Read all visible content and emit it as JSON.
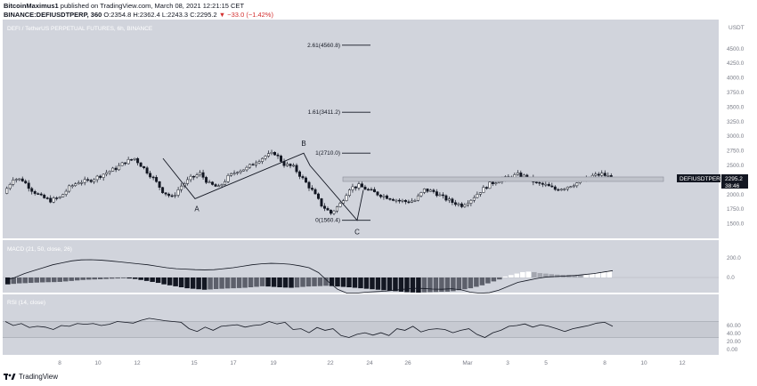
{
  "header": {
    "author": "BitcoinMaximus1",
    "published": "published on TradingView.com, March 08, 2021 12:21:15 CET",
    "symbol": "BINANCE:DEFIUSDTPERP, 360",
    "o": "O:2354.8",
    "h": "H:2362.4",
    "l": "L:2243.3",
    "c": "C:2295.2",
    "change": "▼ −33.0 (−1.42%)"
  },
  "panes": {
    "main_title": "DEFI / TetherUS PERPETUAL FUTURES, 6h, BINANCE",
    "currency": "USDT",
    "macd_title": "MACD (21, 50, close, 26)",
    "rsi_title": "RSI (14, close)"
  },
  "price_tag": {
    "symbol": "DEFIUSDTPERP",
    "price": "2295.2",
    "countdown": "38:46"
  },
  "footer": {
    "brand": "TradingView"
  },
  "colors": {
    "bg": "#ffffff",
    "pane": "#d1d4dc",
    "up": "#ffffff",
    "down": "#131722",
    "line": "#131722"
  },
  "chart_data": [
    {
      "type": "candlestick",
      "title": "DEFI / TetherUS PERPETUAL FUTURES, 6h, BINANCE",
      "ylim": [
        1250,
        5000
      ],
      "yticks": [
        1500,
        1750,
        2000,
        2250,
        2500,
        2750,
        3000,
        3250,
        3500,
        3750,
        4000,
        4250,
        4500
      ],
      "ytick_labels": [
        "1500.0",
        "1750.0",
        "2000.0",
        "2250.0",
        "2500.0",
        "2750.0",
        "3000.0",
        "3250.0",
        "3500.0",
        "3750.0",
        "4000.0",
        "4250.0",
        "4500.0"
      ],
      "x_labels": [
        "8",
        "10",
        "12",
        "15",
        "17",
        "19",
        "22",
        "24",
        "26",
        "Mar",
        "3",
        "5",
        "8",
        "10",
        "12"
      ],
      "close_path": [
        2020,
        2280,
        2250,
        2080,
        1960,
        1900,
        1950,
        2120,
        2220,
        2230,
        2300,
        2380,
        2450,
        2560,
        2620,
        2450,
        2280,
        2060,
        1950,
        2150,
        2280,
        2360,
        2180,
        2120,
        2300,
        2410,
        2450,
        2570,
        2660,
        2710,
        2520,
        2470,
        2270,
        2070,
        1820,
        1680,
        1840,
        2110,
        2150,
        2080,
        2010,
        1960,
        1910,
        1880,
        1900,
        2080,
        2050,
        1950,
        1870,
        1820,
        1920,
        2060,
        2180,
        2250,
        2290,
        2340,
        2300,
        2190,
        2160,
        2090,
        2120,
        2180,
        2240,
        2320,
        2350,
        2295
      ],
      "swing_labels": [
        {
          "label": "A",
          "x": "15",
          "y": 1930
        },
        {
          "label": "B",
          "x": "20",
          "y": 2710
        },
        {
          "label": "C",
          "x": "23",
          "y": 1560
        }
      ],
      "fib_levels": [
        {
          "label": "2.61(4560.8)",
          "value": 4560.8
        },
        {
          "label": "1.61(3411.2)",
          "value": 3411.2
        },
        {
          "label": "1(2710.0)",
          "value": 2710.0
        },
        {
          "label": "0(1560.4)",
          "value": 1560.4
        }
      ],
      "last_price": 2295.2
    },
    {
      "type": "bar",
      "title": "MACD (21, 50, close, 26)",
      "yticks": [
        0,
        200
      ],
      "ytick_labels": [
        "0.0",
        "200.0"
      ],
      "histogram": [
        -70,
        -65,
        -60,
        -58,
        -55,
        -52,
        -50,
        -48,
        -47,
        -45,
        -40,
        -35,
        -30,
        -25,
        -22,
        -20,
        -18,
        -15,
        -12,
        -10,
        -8,
        -10,
        -15,
        -25,
        -35,
        -45,
        -55,
        -70,
        -80,
        -90,
        -100,
        -110,
        -115,
        -120,
        -125,
        -122,
        -118,
        -115,
        -112,
        -110,
        -108,
        -105,
        -100,
        -95,
        -90,
        -92,
        -96,
        -100,
        -103,
        -105,
        -102,
        -96,
        -92,
        -90,
        -88,
        -85,
        -88,
        -92,
        -96,
        -100,
        -105,
        -110,
        -115,
        -120,
        -125,
        -130,
        -135,
        -140,
        -145,
        -150,
        -153,
        -155,
        -152,
        -150,
        -148,
        -146,
        -145,
        -140,
        -130,
        -120,
        -110,
        -95,
        -80,
        -60,
        -40,
        -20,
        10,
        25,
        40,
        55,
        60,
        55,
        45,
        40,
        35,
        30,
        28,
        27,
        26,
        25,
        30,
        40,
        50,
        60,
        70
      ],
      "macd_line": [
        -30,
        0,
        40,
        70,
        100,
        130,
        150,
        170,
        180,
        182,
        178,
        170,
        160,
        150,
        140,
        130,
        115,
        100,
        90,
        85,
        80,
        78,
        80,
        90,
        100,
        115,
        130,
        140,
        145,
        142,
        135,
        120,
        100,
        50,
        -40,
        -120,
        -160,
        -160,
        -150,
        -145,
        -140,
        -130,
        -120,
        -110,
        -112,
        -118,
        -120,
        -115,
        -125,
        -150,
        -160,
        -155,
        -130,
        -90,
        -50,
        -30,
        -10,
        5,
        10,
        15,
        20,
        30,
        40,
        55,
        70
      ]
    },
    {
      "type": "line",
      "title": "RSI (14, close)",
      "yticks": [
        0,
        20,
        40,
        60
      ],
      "ytick_labels": [
        "0.00",
        "20.00",
        "40.00",
        "60.00"
      ],
      "values": [
        70,
        60,
        65,
        55,
        58,
        56,
        50,
        60,
        58,
        65,
        63,
        65,
        60,
        63,
        70,
        68,
        66,
        73,
        78,
        75,
        72,
        70,
        68,
        52,
        45,
        56,
        48,
        58,
        60,
        62,
        56,
        60,
        62,
        70,
        64,
        68,
        50,
        52,
        42,
        55,
        48,
        52,
        35,
        30,
        38,
        42,
        36,
        42,
        35,
        52,
        48,
        58,
        44,
        50,
        52,
        50,
        42,
        48,
        52,
        38,
        30,
        42,
        48,
        58,
        60,
        64,
        56,
        62,
        58,
        52,
        45,
        52,
        56,
        60,
        66,
        68,
        58
      ]
    }
  ]
}
